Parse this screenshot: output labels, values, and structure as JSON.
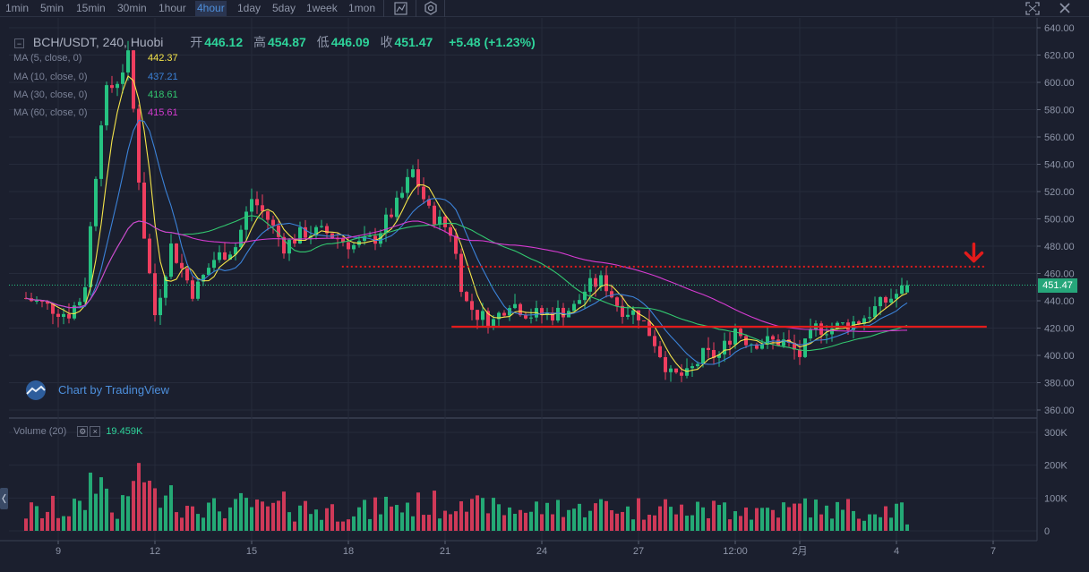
{
  "toolbar": {
    "timeframes": [
      "1min",
      "5min",
      "15min",
      "30min",
      "1hour",
      "4hour",
      "1day",
      "5day",
      "1week",
      "1mon"
    ],
    "active": "4hour",
    "icons": [
      "chart-style-icon",
      "settings-icon"
    ],
    "right_icons": [
      "fullscreen-icon",
      "close-icon"
    ]
  },
  "legend": {
    "symbol": "BCH/USDT, 240, Huobi",
    "open_label": "开",
    "open": "446.12",
    "high_label": "高",
    "high": "454.87",
    "low_label": "低",
    "low": "446.09",
    "close_label": "收",
    "close": "451.47",
    "change": "+5.48 (+1.23%)"
  },
  "ma": [
    {
      "label": "MA (5, close, 0)",
      "value": "442.37",
      "color": "#f5e54a"
    },
    {
      "label": "MA (10, close, 0)",
      "value": "437.21",
      "color": "#3b82d8"
    },
    {
      "label": "MA (30, close, 0)",
      "value": "418.61",
      "color": "#32c76f"
    },
    {
      "label": "MA (60, close, 0)",
      "value": "415.61",
      "color": "#d63bd1"
    }
  ],
  "volume": {
    "label": "Volume (20)",
    "value": "19.459K"
  },
  "watermark": "Chart by TradingView",
  "last_price_tag": "451.47",
  "chart_data": {
    "type": "candlestick",
    "symbol": "BCH/USDT",
    "interval": "240",
    "exchange": "Huobi",
    "price_axis": {
      "range": [
        360,
        640
      ],
      "ticks": [
        "640.00",
        "620.00",
        "600.00",
        "580.00",
        "560.00",
        "540.00",
        "520.00",
        "500.00",
        "480.00",
        "460.00",
        "440.00",
        "420.00",
        "400.00",
        "380.00",
        "360.00"
      ]
    },
    "volume_axis": {
      "range": [
        0,
        300000
      ],
      "ticks": [
        "300K",
        "200K",
        "100K",
        "0"
      ]
    },
    "x_labels": [
      {
        "label": "9",
        "day": 9
      },
      {
        "label": "12",
        "day": 12
      },
      {
        "label": "15",
        "day": 15
      },
      {
        "label": "18",
        "day": 18
      },
      {
        "label": "21",
        "day": 21
      },
      {
        "label": "24",
        "day": 24
      },
      {
        "label": "27",
        "day": 27
      },
      {
        "label": "12:00",
        "day": 30
      },
      {
        "label": "2月",
        "day": 32
      },
      {
        "label": "4",
        "day": 35
      },
      {
        "label": "7",
        "day": 38
      }
    ],
    "anchors": [
      [
        8,
        442
      ],
      [
        9.3,
        430
      ],
      [
        9.8,
        445
      ],
      [
        10.4,
        590
      ],
      [
        10.8,
        600
      ],
      [
        11.2,
        620
      ],
      [
        11.6,
        500
      ],
      [
        12,
        430
      ],
      [
        12.5,
        480
      ],
      [
        13.2,
        445
      ],
      [
        13.8,
        470
      ],
      [
        14.5,
        480
      ],
      [
        15,
        515
      ],
      [
        15.5,
        500
      ],
      [
        16,
        480
      ],
      [
        16.6,
        490
      ],
      [
        17.3,
        490
      ],
      [
        18.2,
        480
      ],
      [
        18.8,
        485
      ],
      [
        19.5,
        510
      ],
      [
        20,
        535
      ],
      [
        20.5,
        505
      ],
      [
        21.2,
        490
      ],
      [
        21.6,
        440
      ],
      [
        22,
        430
      ],
      [
        22.5,
        425
      ],
      [
        23,
        440
      ],
      [
        23.6,
        430
      ],
      [
        24.3,
        430
      ],
      [
        25,
        435
      ],
      [
        25.4,
        450
      ],
      [
        25.9,
        455
      ],
      [
        26.4,
        435
      ],
      [
        27,
        430
      ],
      [
        27.5,
        410
      ],
      [
        28,
        385
      ],
      [
        28.5,
        385
      ],
      [
        29,
        400
      ],
      [
        29.5,
        400
      ],
      [
        30,
        420
      ],
      [
        30.4,
        410
      ],
      [
        31,
        410
      ],
      [
        31.5,
        410
      ],
      [
        32,
        400
      ],
      [
        32.5,
        420
      ],
      [
        33,
        420
      ],
      [
        33.8,
        425
      ],
      [
        34.5,
        437
      ],
      [
        35,
        445
      ],
      [
        35.4,
        451.47
      ]
    ],
    "annotations": {
      "resistance_dotted": {
        "price": 465,
        "from_day": 17.8,
        "to_day": 37.8,
        "color": "#e31b1b"
      },
      "support_solid": {
        "price": 421,
        "from_day": 21.2,
        "to_day": 37.8,
        "color": "#e31b1b"
      },
      "arrow": {
        "price": 475,
        "day": 37.4,
        "direction": "down",
        "color": "#e31b1b"
      },
      "last_price_line": 451.47
    },
    "colors": {
      "up": "#26c281",
      "down": "#ef3e5f",
      "grid": "#262b3b"
    }
  }
}
